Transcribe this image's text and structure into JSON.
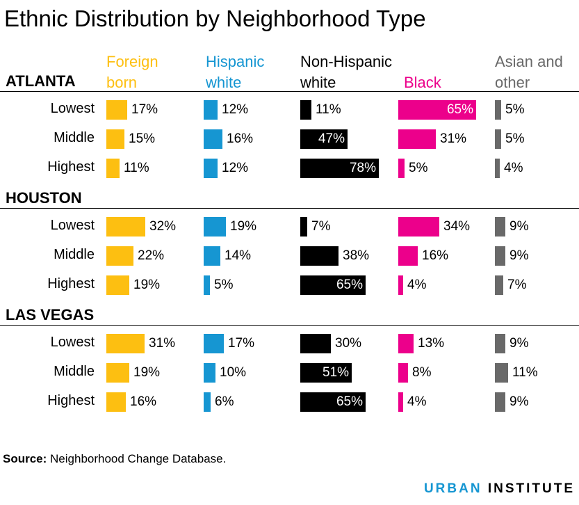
{
  "title": "Ethnic Distribution by Neighborhood Type",
  "source_label": "Source:",
  "source_text": "Neighborhood Change Database.",
  "brand_part1": "URBAN",
  "brand_part2": "INSTITUTE",
  "chart_data": {
    "type": "bar",
    "title": "Ethnic Distribution by Neighborhood Type",
    "unit": "%",
    "series": [
      {
        "key": "foreign",
        "name_lines": [
          "Foreign",
          "born"
        ],
        "color": "#fdbf11"
      },
      {
        "key": "hispwhite",
        "name_lines": [
          "Hispanic",
          "white"
        ],
        "color": "#1696d2"
      },
      {
        "key": "nhwhite",
        "name_lines": [
          "Non-Hispanic",
          "white"
        ],
        "color": "#000000"
      },
      {
        "key": "black",
        "name_lines": [
          "Black"
        ],
        "color": "#ec008b"
      },
      {
        "key": "asian",
        "name_lines": [
          "Asian and",
          "other"
        ],
        "color": "#696969"
      }
    ],
    "groups": [
      {
        "city": "ATLANTA",
        "rows": [
          {
            "label": "Lowest",
            "values": [
              17,
              12,
              11,
              65,
              5
            ]
          },
          {
            "label": "Middle",
            "values": [
              15,
              16,
              47,
              31,
              5
            ]
          },
          {
            "label": "Highest",
            "values": [
              11,
              12,
              78,
              5,
              4
            ]
          }
        ]
      },
      {
        "city": "HOUSTON",
        "rows": [
          {
            "label": "Lowest",
            "values": [
              32,
              19,
              7,
              34,
              9
            ]
          },
          {
            "label": "Middle",
            "values": [
              22,
              14,
              38,
              16,
              9
            ]
          },
          {
            "label": "Highest",
            "values": [
              19,
              5,
              65,
              4,
              7
            ]
          }
        ]
      },
      {
        "city": "LAS VEGAS",
        "rows": [
          {
            "label": "Lowest",
            "values": [
              31,
              17,
              30,
              13,
              9
            ]
          },
          {
            "label": "Middle",
            "values": [
              19,
              10,
              51,
              8,
              11
            ]
          },
          {
            "label": "Highest",
            "values": [
              16,
              6,
              65,
              4,
              9
            ]
          }
        ]
      }
    ]
  }
}
